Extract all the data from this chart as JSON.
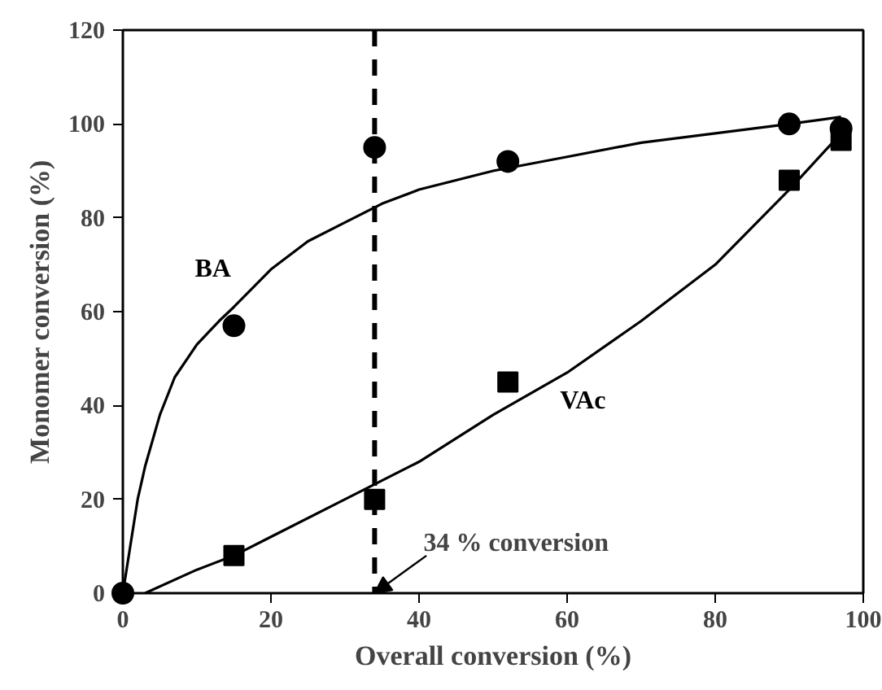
{
  "chart_data": {
    "type": "scatter",
    "xlabel": "Overall conversion (%)",
    "ylabel": "Monomer conversion (%)",
    "xlim": [
      0,
      100
    ],
    "ylim": [
      0,
      120
    ],
    "xticks": [
      0,
      20,
      40,
      60,
      80,
      100
    ],
    "yticks": [
      0,
      20,
      40,
      60,
      80,
      100,
      120
    ],
    "grid": false,
    "series": [
      {
        "name": "BA",
        "color": "#000000",
        "marker": "circle",
        "x": [
          0,
          15,
          34,
          52,
          90,
          97
        ],
        "values": [
          0,
          57,
          95,
          92,
          100,
          99
        ]
      },
      {
        "name": "VAc",
        "color": "#000000",
        "marker": "square",
        "x": [
          15,
          34,
          52,
          90,
          97
        ],
        "values": [
          8,
          20,
          45,
          88,
          96.5
        ]
      },
      {
        "type": "line",
        "color": "#000000",
        "marker": "none",
        "x": [
          0,
          1,
          2,
          3,
          5,
          7,
          10,
          13,
          15,
          20,
          25,
          30,
          35,
          40,
          50,
          60,
          70,
          80,
          90,
          97
        ],
        "values": [
          0,
          10,
          20,
          27,
          38,
          46,
          53,
          58,
          61,
          69,
          75,
          79,
          83,
          86,
          90,
          93,
          96,
          98,
          100,
          101.5
        ]
      },
      {
        "type": "line",
        "color": "#000000",
        "marker": "none",
        "x": [
          3,
          10,
          15,
          20,
          30,
          40,
          50,
          60,
          70,
          80,
          90,
          97
        ],
        "values": [
          0,
          5,
          8,
          12,
          20,
          28,
          38,
          47,
          58,
          70,
          86,
          98
        ]
      }
    ],
    "ref_lines": [
      {
        "axis": "x",
        "value": 34,
        "line_style": "dashed",
        "color": "#000000"
      }
    ],
    "annotations": [
      {
        "text": "34 % conversion",
        "x": 34,
        "y": 0
      }
    ]
  }
}
